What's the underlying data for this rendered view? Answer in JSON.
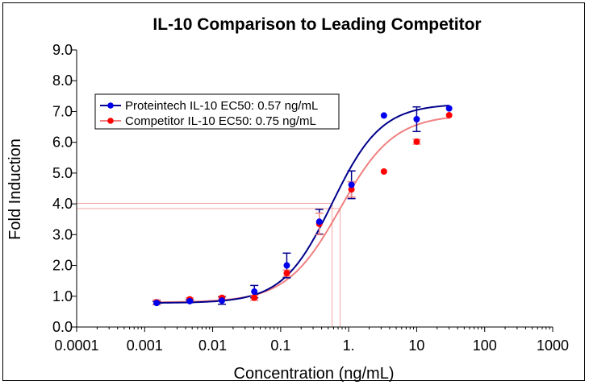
{
  "chart_data": {
    "type": "scatter",
    "title": "IL-10 Comparison to Leading Competitor",
    "xlabel": "Concentration (ng/mL)",
    "ylabel": "Fold Induction",
    "x_scale": "log",
    "xlim": [
      0.0001,
      1000
    ],
    "ylim": [
      0,
      9
    ],
    "x_ticks": [
      0.0001,
      0.001,
      0.01,
      0.1,
      1,
      10,
      100,
      1000
    ],
    "x_tick_labels": [
      "0.0001",
      "0.001",
      "0.01",
      "0.1",
      "1.",
      "10",
      "100",
      "1000"
    ],
    "y_ticks": [
      0,
      1,
      2,
      3,
      4,
      5,
      6,
      7,
      8,
      9
    ],
    "y_tick_labels": [
      "0.0",
      "1.0",
      "2.0",
      "3.0",
      "4.0",
      "5.0",
      "6.0",
      "7.0",
      "8.0",
      "9.0"
    ],
    "grid": false,
    "legend_position": "top-left",
    "series": [
      {
        "name": "Proteintech IL-10 EC50: 0.57 ng/mL",
        "color": "#0000ee",
        "curve_color": "#00008b",
        "ec50": 0.57,
        "fit": {
          "bottom": 0.78,
          "top": 7.25,
          "hill": 1.2
        },
        "x": [
          0.0015,
          0.0046,
          0.0137,
          0.041,
          0.123,
          0.37,
          1.1,
          3.3,
          10,
          30
        ],
        "y": [
          0.78,
          0.84,
          0.86,
          1.15,
          2.0,
          3.42,
          4.62,
          6.87,
          6.75,
          7.1
        ],
        "err": [
          0.05,
          0.05,
          0.12,
          0.2,
          0.4,
          0.4,
          0.45,
          0,
          0.4,
          0
        ]
      },
      {
        "name": "Competitor IL-10 EC50: 0.75 ng/mL",
        "color": "#ff0000",
        "curve_color": "#f08080",
        "ec50": 0.75,
        "fit": {
          "bottom": 0.8,
          "top": 6.9,
          "hill": 1.1
        },
        "x": [
          0.0015,
          0.0046,
          0.0137,
          0.041,
          0.123,
          0.37,
          1.1,
          3.3,
          10,
          30
        ],
        "y": [
          0.8,
          0.9,
          0.95,
          0.95,
          1.75,
          3.35,
          4.47,
          5.05,
          6.02,
          6.88
        ],
        "err": [
          0.08,
          0.05,
          0.05,
          0.08,
          0.1,
          0.35,
          0.25,
          0,
          0.08,
          0
        ]
      }
    ]
  }
}
